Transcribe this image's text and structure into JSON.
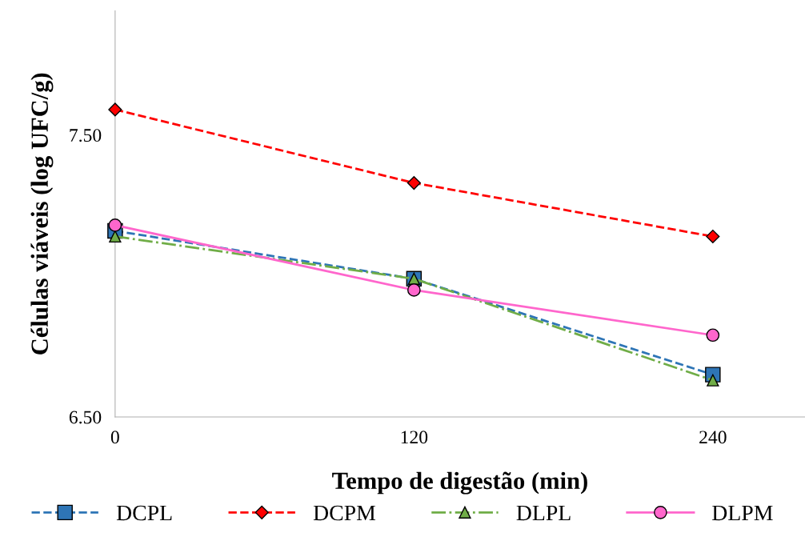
{
  "chart_data": {
    "type": "line",
    "xlabel": "Tempo de digestão (min)",
    "ylabel": "Células viáveis (log UFC/g)",
    "x": [
      0,
      120,
      240
    ],
    "xlim": [
      0,
      277
    ],
    "xticks": [
      0,
      120,
      240
    ],
    "ylim": [
      6.5,
      7.94
    ],
    "yticks": [
      {
        "value": 6.5,
        "label": "6.50"
      },
      {
        "value": 7.5,
        "label": "7.50"
      }
    ],
    "grid": false,
    "legend": "bottom",
    "series": [
      {
        "name": "DCPL",
        "color": "#2e75b6",
        "values": [
          7.16,
          6.99,
          6.65
        ],
        "marker": "square",
        "line_style": "dashed"
      },
      {
        "name": "DCPM",
        "color": "#ff0000",
        "values": [
          7.59,
          7.33,
          7.14
        ],
        "marker": "diamond",
        "line_style": "dashed"
      },
      {
        "name": "DLPL",
        "color": "#70ad47",
        "values": [
          7.14,
          6.99,
          6.63
        ],
        "marker": "triangle",
        "line_style": "dashdot"
      },
      {
        "name": "DLPM",
        "color": "#ff66cc",
        "values": [
          7.18,
          6.95,
          6.79
        ],
        "marker": "circle",
        "line_style": "solid"
      }
    ]
  }
}
